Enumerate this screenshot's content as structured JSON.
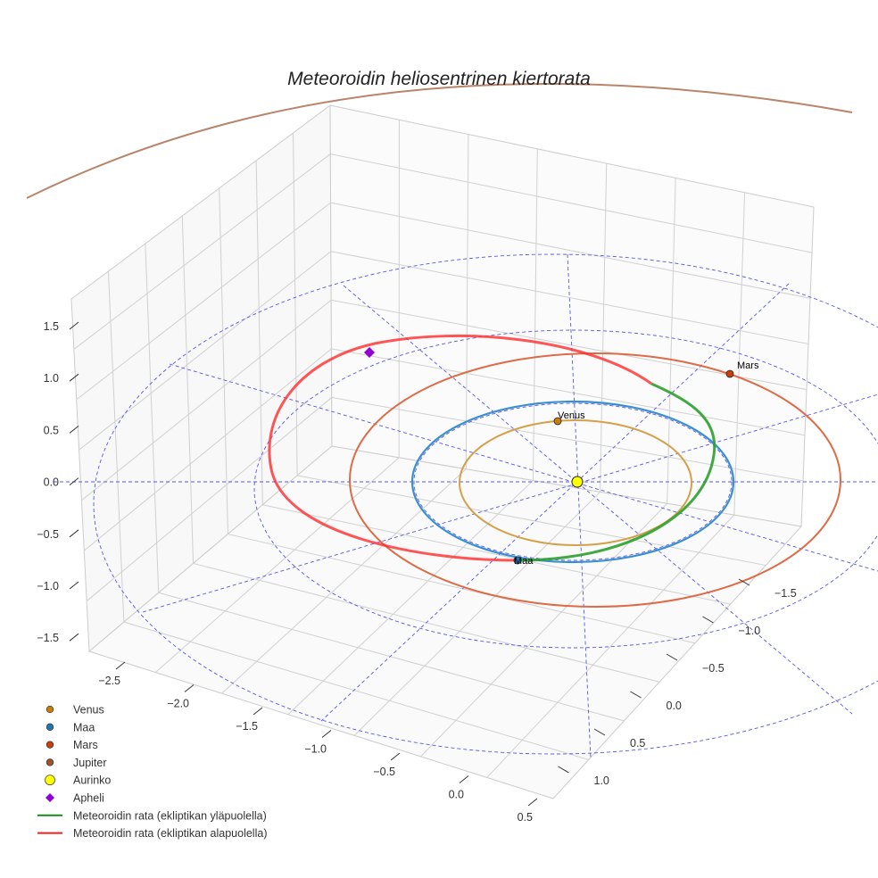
{
  "chart_data": {
    "type": "scatter",
    "projection": "3d",
    "title": "Meteoroidin heliosentrinen kiertorata",
    "xlabel": "",
    "ylabel": "",
    "zlabel": "",
    "x_ticks": [
      "−2.5",
      "−2.0",
      "−1.5",
      "−1.0",
      "−0.5",
      "0.0",
      "0.5"
    ],
    "y_ticks": [
      "−1.5",
      "−1.0",
      "−0.5",
      "0.0",
      "0.5",
      "1.0"
    ],
    "z_ticks": [
      "1.5",
      "1.0",
      "0.5",
      "0.0",
      "−0.5",
      "−1.0",
      "−1.5"
    ],
    "grid": true,
    "bodies": [
      {
        "name": "Venus",
        "label": "Venus",
        "color": "#c87f0a",
        "orbit_color": "#d4a04a",
        "orbit_radius_au": 0.72
      },
      {
        "name": "Maa",
        "label": "Maa",
        "color": "#1f77b4",
        "orbit_color": "#3a8fd0",
        "orbit_radius_au": 1.0
      },
      {
        "name": "Mars",
        "label": "Mars",
        "color": "#cc3d0a",
        "orbit_color": "#dd6b45",
        "orbit_radius_au": 1.52
      },
      {
        "name": "Jupiter",
        "color": "#a0522d",
        "orbit_color": "#b9846a",
        "orbit_radius_au": 5.2
      },
      {
        "name": "Aurinko",
        "color": "#ffff00"
      }
    ],
    "meteoroid": {
      "above_color": "#2ca02c",
      "below_color": "#ff2a2a",
      "aphelion_color": "#9400d3"
    },
    "legend": {
      "placement": "lower-left",
      "entries": [
        {
          "label": "Venus",
          "marker": "circle",
          "color": "#c87f0a"
        },
        {
          "label": "Maa",
          "marker": "circle",
          "color": "#1f77b4"
        },
        {
          "label": "Mars",
          "marker": "circle",
          "color": "#cc3d0a"
        },
        {
          "label": "Jupiter",
          "marker": "circle",
          "color": "#a0522d"
        },
        {
          "label": "Aurinko",
          "marker": "circle-large",
          "color": "#ffff00"
        },
        {
          "label": "Apheli",
          "marker": "diamond",
          "color": "#9400d3"
        },
        {
          "label": "Meteoroidin rata (ekliptikan yläpuolella)",
          "marker": "line",
          "color": "#1a8a1a"
        },
        {
          "label": "Meteoroidin rata (ekliptikan alapuolella)",
          "marker": "line",
          "color": "#ee2222"
        }
      ]
    }
  }
}
